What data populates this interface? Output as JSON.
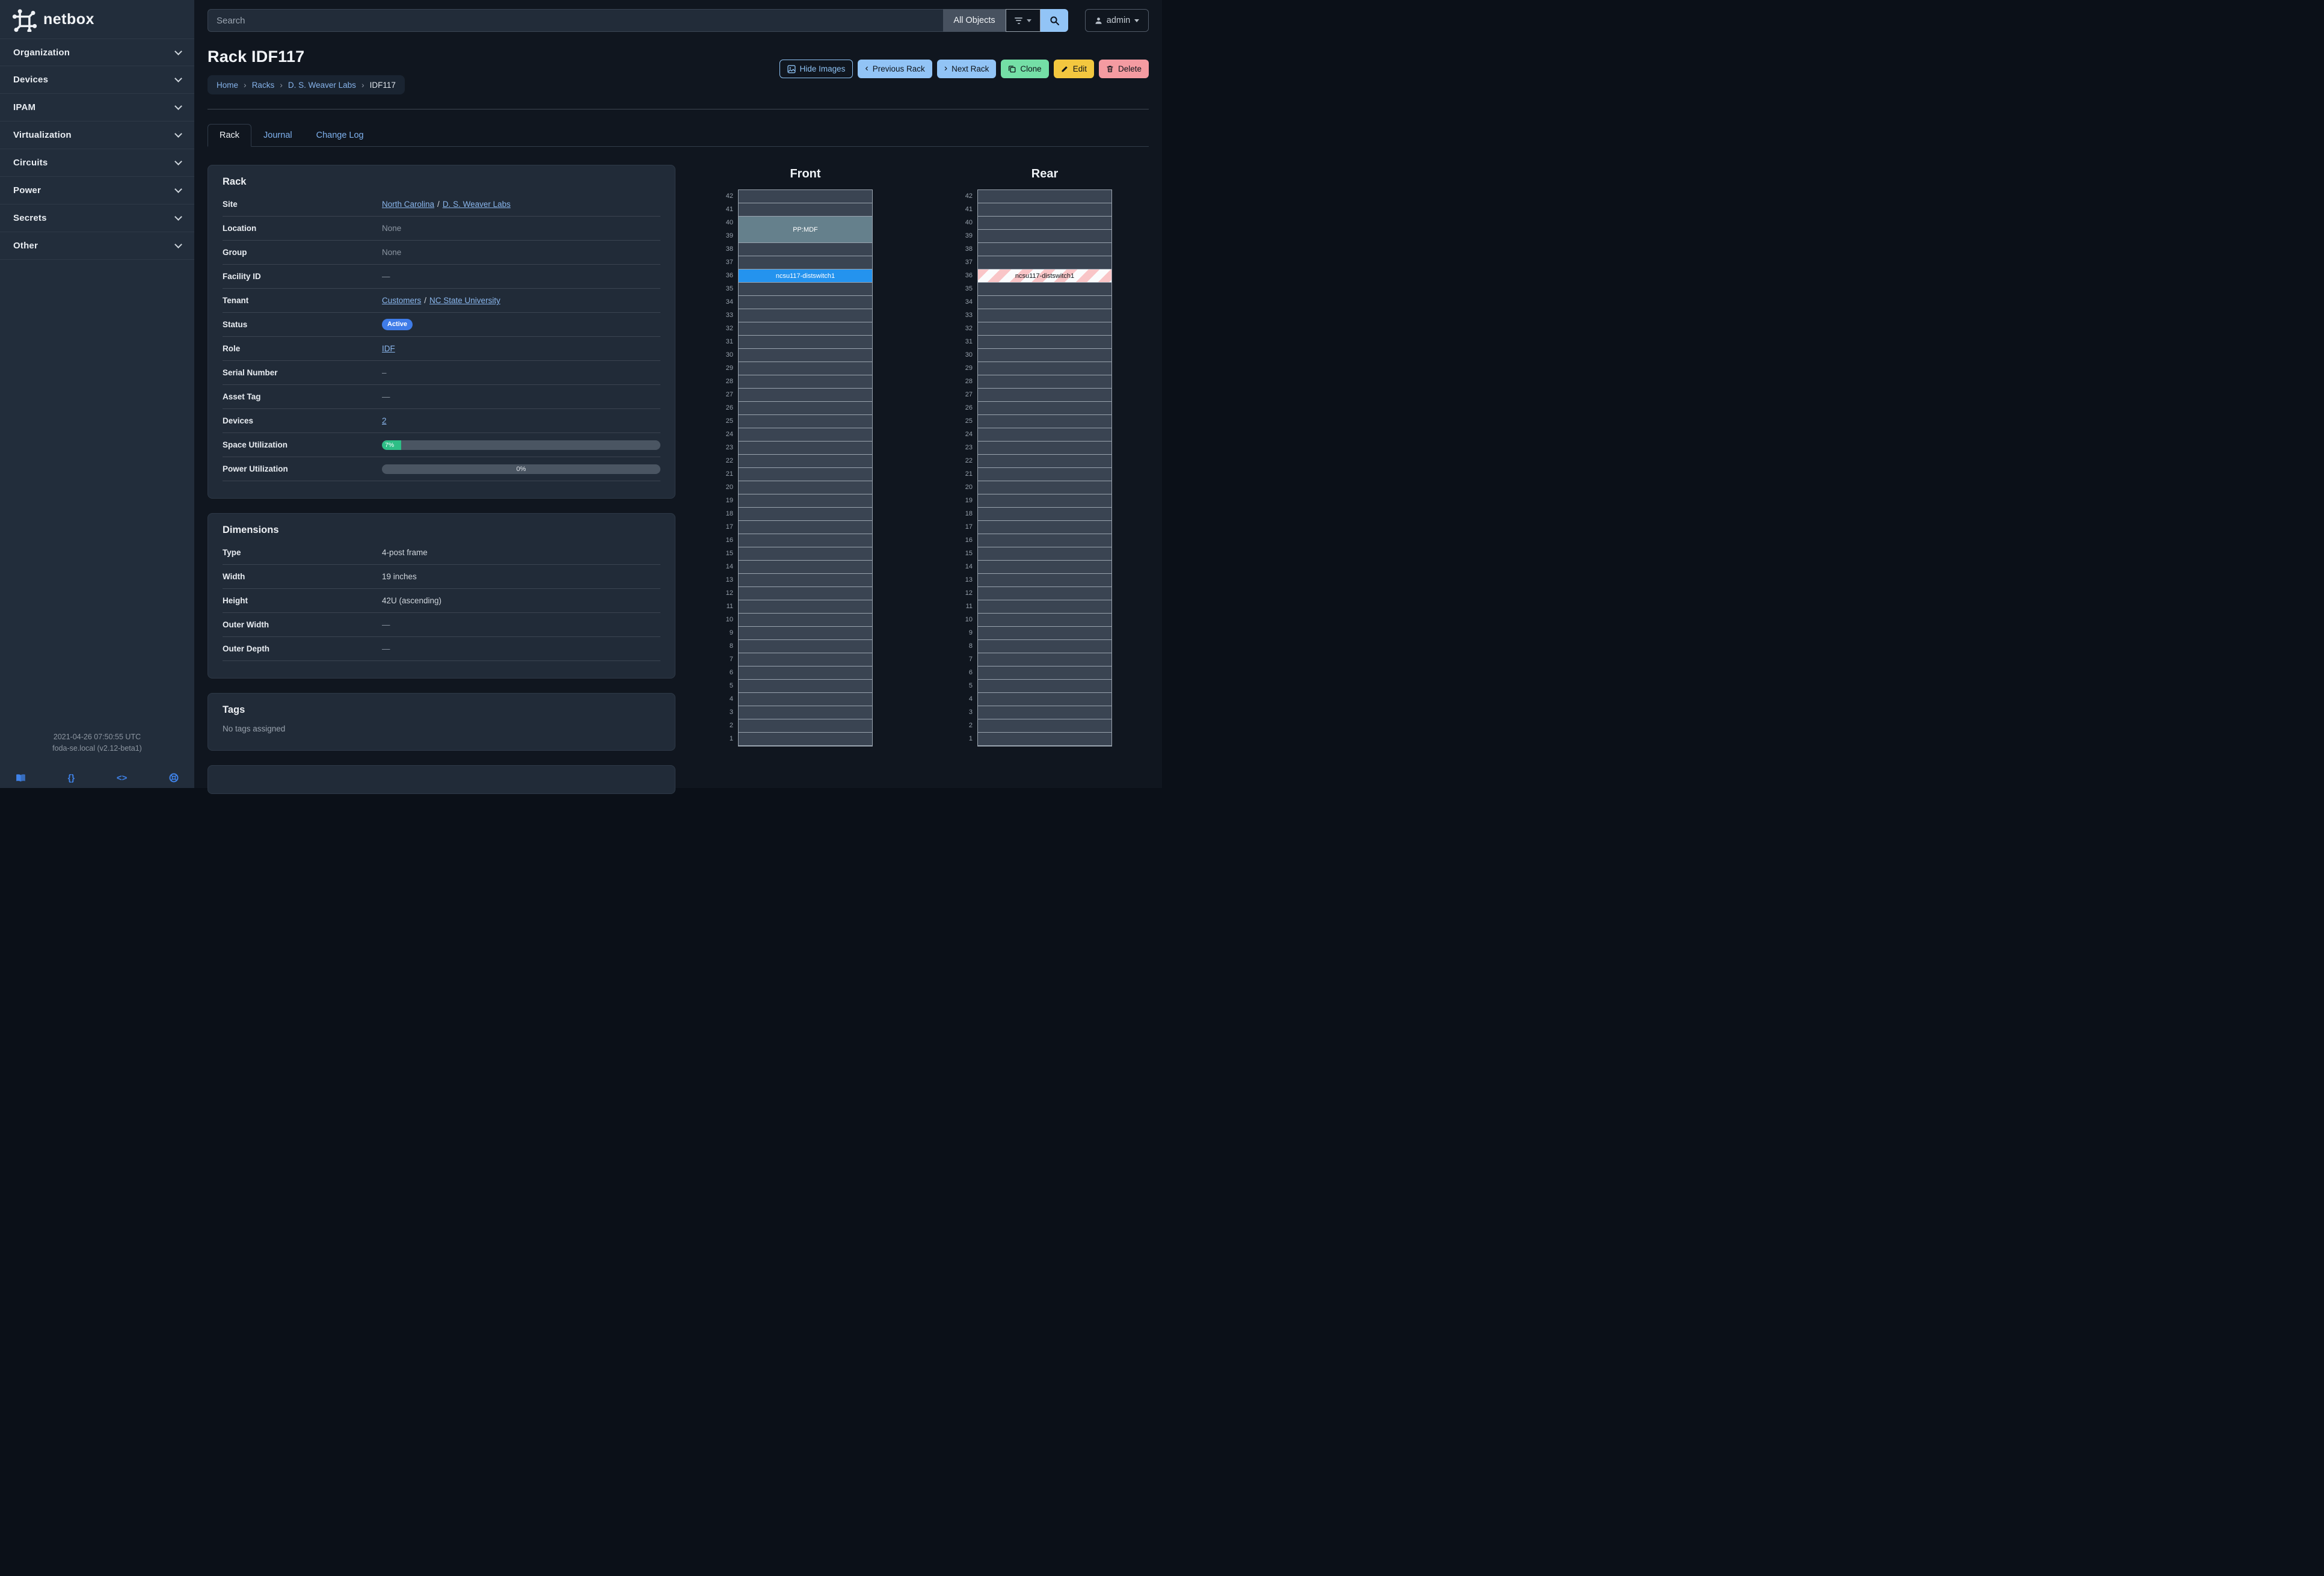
{
  "brand": {
    "name": "netbox"
  },
  "sidebar": {
    "items": [
      {
        "label": "Organization"
      },
      {
        "label": "Devices"
      },
      {
        "label": "IPAM"
      },
      {
        "label": "Virtualization"
      },
      {
        "label": "Circuits"
      },
      {
        "label": "Power"
      },
      {
        "label": "Secrets"
      },
      {
        "label": "Other"
      }
    ],
    "footer": {
      "timestamp": "2021-04-26 07:50:55 UTC",
      "build": "foda-se.local (v2.12-beta1)"
    }
  },
  "header": {
    "search_placeholder": "Search",
    "scope_label": "All Objects",
    "user_label": "admin"
  },
  "page": {
    "title": "Rack IDF117",
    "breadcrumb_separator": "›",
    "breadcrumbs": [
      {
        "label": "Home",
        "link": true
      },
      {
        "label": "Racks",
        "link": true
      },
      {
        "label": "D. S. Weaver Labs",
        "link": true
      },
      {
        "label": "IDF117",
        "link": false
      }
    ],
    "actions": {
      "hide_images": "Hide Images",
      "previous_rack": "Previous Rack",
      "next_rack": "Next Rack",
      "clone": "Clone",
      "edit": "Edit",
      "delete": "Delete"
    },
    "tabs": [
      {
        "label": "Rack",
        "active": true
      },
      {
        "label": "Journal",
        "active": false
      },
      {
        "label": "Change Log",
        "active": false
      }
    ]
  },
  "rack_panel": {
    "title": "Rack",
    "site": {
      "label": "Site",
      "region": "North Carolina",
      "separator": "/",
      "name": "D. S. Weaver Labs"
    },
    "location": {
      "label": "Location",
      "value": "None"
    },
    "group": {
      "label": "Group",
      "value": "None"
    },
    "facility_id": {
      "label": "Facility ID",
      "value": "—"
    },
    "tenant": {
      "label": "Tenant",
      "group": "Customers",
      "separator": "/",
      "name": "NC State University"
    },
    "status": {
      "label": "Status",
      "value": "Active",
      "color": "#3f7ce8"
    },
    "role": {
      "label": "Role",
      "value": "IDF"
    },
    "serial_number": {
      "label": "Serial Number",
      "value": "–"
    },
    "asset_tag": {
      "label": "Asset Tag",
      "value": "—"
    },
    "devices": {
      "label": "Devices",
      "value": "2"
    },
    "space_utilization": {
      "label": "Space Utilization",
      "percent": 7,
      "text": "7%",
      "bar_color": "#2ebe86"
    },
    "power_utilization": {
      "label": "Power Utilization",
      "percent": 0,
      "text": "0%"
    }
  },
  "dimensions_panel": {
    "title": "Dimensions",
    "type": {
      "label": "Type",
      "value": "4-post frame"
    },
    "width": {
      "label": "Width",
      "value": "19 inches"
    },
    "height": {
      "label": "Height",
      "value": "42U (ascending)"
    },
    "outer_width": {
      "label": "Outer Width",
      "value": "—"
    },
    "outer_depth": {
      "label": "Outer Depth",
      "value": "—"
    }
  },
  "tags_panel": {
    "title": "Tags",
    "empty_text": "No tags assigned"
  },
  "elevations": {
    "units": 42,
    "front": {
      "title": "Front",
      "devices": [
        {
          "name": "PP:MDF",
          "top_unit": 40,
          "u_height": 2,
          "color": "#65808c",
          "text_color": "#ffffff"
        },
        {
          "name": "ncsu117-distswitch1",
          "top_unit": 36,
          "u_height": 1,
          "color": "#2493ee",
          "text_color": "#ffffff"
        }
      ]
    },
    "rear": {
      "title": "Rear",
      "devices": [
        {
          "name": "ncsu117-distswitch1",
          "top_unit": 36,
          "u_height": 1,
          "hatched": true,
          "text_color": "#101418"
        }
      ]
    }
  }
}
